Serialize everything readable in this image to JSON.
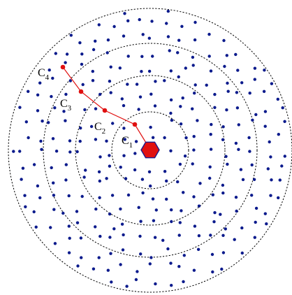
{
  "colors": {
    "background": "#ffffff",
    "node": "#0a1a8c",
    "ring": "#000000",
    "route": "#e01010",
    "source_fill": "#e01010",
    "source_stroke": "#1a1a8c"
  },
  "diagram": {
    "rings_count": 4,
    "source_shape": "hexagon",
    "route_points": 4,
    "labels": [
      {
        "main": "C",
        "sub": "1"
      },
      {
        "main": "C",
        "sub": "2"
      },
      {
        "main": "C",
        "sub": "3"
      },
      {
        "main": "C",
        "sub": "4"
      }
    ]
  }
}
